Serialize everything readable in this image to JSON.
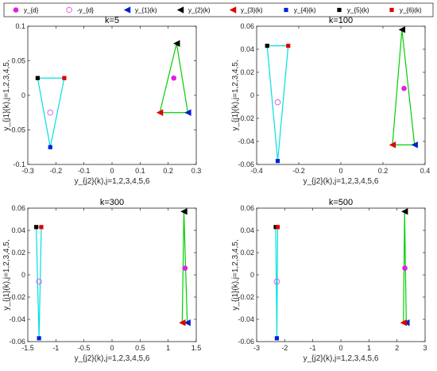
{
  "colors": {
    "y_d": "#e020e0",
    "neg_y_d": "#e060e0",
    "y1": "#0020d0",
    "y2": "#000000",
    "y3": "#e00000",
    "y4": "#0020e0",
    "y5": "#000000",
    "y6": "#e00000",
    "tri_a": "#00e0e0",
    "tri_b": "#00d000"
  },
  "legend": {
    "entries": [
      {
        "label": "y_{d}",
        "marker": "circle-filled",
        "color_key": "y_d"
      },
      {
        "label": "-y_{d}",
        "marker": "circle-open",
        "color_key": "neg_y_d"
      },
      {
        "label": "y_{1}(k)",
        "marker": "triangle-left",
        "color_key": "y1"
      },
      {
        "label": "y_{2}(k)",
        "marker": "triangle-left",
        "color_key": "y2"
      },
      {
        "label": "y_{3}(k)",
        "marker": "triangle-left",
        "color_key": "y3"
      },
      {
        "label": "y_{4}(k)",
        "marker": "square",
        "color_key": "y4"
      },
      {
        "label": "y_{5}(k)",
        "marker": "square",
        "color_key": "y5"
      },
      {
        "label": "y_{6}(k)",
        "marker": "square",
        "color_key": "y6"
      }
    ]
  },
  "chart_data": [
    {
      "type": "scatter",
      "title": "k=5",
      "xlabel": "y_{j2}(k),j=1,2,3,4,5,6",
      "ylabel": "y_{j1}(k),j=1,2,3,4,5,",
      "xlim": [
        -0.3,
        0.3
      ],
      "ylim": [
        -0.1,
        0.1
      ],
      "xticks": [
        -0.3,
        -0.2,
        -0.1,
        0,
        0.1,
        0.2,
        0.3
      ],
      "yticks": [
        -0.1,
        -0.05,
        0,
        0.05,
        0.1
      ],
      "xticklabels": [
        "-0.3",
        "-0.2",
        "-0.1",
        "0",
        "0.1",
        "0.2",
        "0.3"
      ],
      "yticklabels": [
        "-0.1",
        "-0.05",
        "0",
        "0.05",
        "0.1"
      ],
      "y_d": [
        0.22,
        0.025
      ],
      "neg_y_d": [
        -0.22,
        -0.025
      ],
      "y1": [
        0.27,
        -0.025
      ],
      "y2": [
        0.23,
        0.075
      ],
      "y3": [
        0.17,
        -0.025
      ],
      "y4": [
        -0.22,
        -0.075
      ],
      "y5": [
        -0.265,
        0.025
      ],
      "y6": [
        -0.17,
        0.025
      ]
    },
    {
      "type": "scatter",
      "title": "k=100",
      "xlabel": "y_{j2}(k),j=1,2,3,4,5,6",
      "ylabel": "y_{j1}(k),j=1,2,3,4,5,",
      "xlim": [
        -0.4,
        0.4
      ],
      "ylim": [
        -0.06,
        0.06
      ],
      "xticks": [
        -0.4,
        -0.2,
        0,
        0.2,
        0.4
      ],
      "yticks": [
        -0.06,
        -0.04,
        -0.02,
        0,
        0.02,
        0.04,
        0.06
      ],
      "xticklabels": [
        "-0.4",
        "-0.2",
        "0",
        "0.2",
        "0.4"
      ],
      "yticklabels": [
        "-0.06",
        "-0.04",
        "-0.02",
        "0",
        "0.02",
        "0.04",
        "0.06"
      ],
      "y_d": [
        0.3,
        0.006
      ],
      "neg_y_d": [
        -0.3,
        -0.006
      ],
      "y1": [
        0.35,
        -0.043
      ],
      "y2": [
        0.29,
        0.057
      ],
      "y3": [
        0.245,
        -0.043
      ],
      "y4": [
        -0.3,
        -0.057
      ],
      "y5": [
        -0.35,
        0.043
      ],
      "y6": [
        -0.25,
        0.043
      ]
    },
    {
      "type": "scatter",
      "title": "k=300",
      "xlabel": "y_{j2}(k),j=1,2,3,4,5,6",
      "ylabel": "y_{j1}(k),j=1,2,3,4,5,",
      "xlim": [
        -1.5,
        1.5
      ],
      "ylim": [
        -0.06,
        0.06
      ],
      "xticks": [
        -1.5,
        -1,
        -0.5,
        0,
        0.5,
        1,
        1.5
      ],
      "yticks": [
        -0.06,
        -0.04,
        -0.02,
        0,
        0.02,
        0.04,
        0.06
      ],
      "xticklabels": [
        "-1.5",
        "-1",
        "-0.5",
        "0",
        "0.5",
        "1",
        "1.5"
      ],
      "yticklabels": [
        "-0.06",
        "-0.04",
        "-0.02",
        "0",
        "0.02",
        "0.04",
        "0.06"
      ],
      "y_d": [
        1.3,
        0.006
      ],
      "neg_y_d": [
        -1.3,
        -0.006
      ],
      "y1": [
        1.34,
        -0.043
      ],
      "y2": [
        1.28,
        0.057
      ],
      "y3": [
        1.25,
        -0.043
      ],
      "y4": [
        -1.3,
        -0.057
      ],
      "y5": [
        -1.35,
        0.043
      ],
      "y6": [
        -1.26,
        0.043
      ]
    },
    {
      "type": "scatter",
      "title": "k=500",
      "xlabel": "y_{j2}(k),j=1,2,3,4,5,6",
      "ylabel": "y_{j1}(k),j=1,2,3,4,5,",
      "xlim": [
        -3,
        3
      ],
      "ylim": [
        -0.06,
        0.06
      ],
      "xticks": [
        -3,
        -2,
        -1,
        0,
        1,
        2,
        3
      ],
      "yticks": [
        -0.06,
        -0.04,
        -0.02,
        0,
        0.02,
        0.04,
        0.06
      ],
      "xticklabels": [
        "-3",
        "-2",
        "-1",
        "0",
        "1",
        "2",
        "3"
      ],
      "yticklabels": [
        "-0.06",
        "-0.04",
        "-0.02",
        "0",
        "0.02",
        "0.04",
        "0.06"
      ],
      "y_d": [
        2.28,
        0.006
      ],
      "neg_y_d": [
        -2.28,
        -0.006
      ],
      "y1": [
        2.33,
        -0.043
      ],
      "y2": [
        2.27,
        0.057
      ],
      "y3": [
        2.23,
        -0.043
      ],
      "y4": [
        -2.28,
        -0.057
      ],
      "y5": [
        -2.32,
        0.043
      ],
      "y6": [
        -2.25,
        0.043
      ]
    }
  ]
}
